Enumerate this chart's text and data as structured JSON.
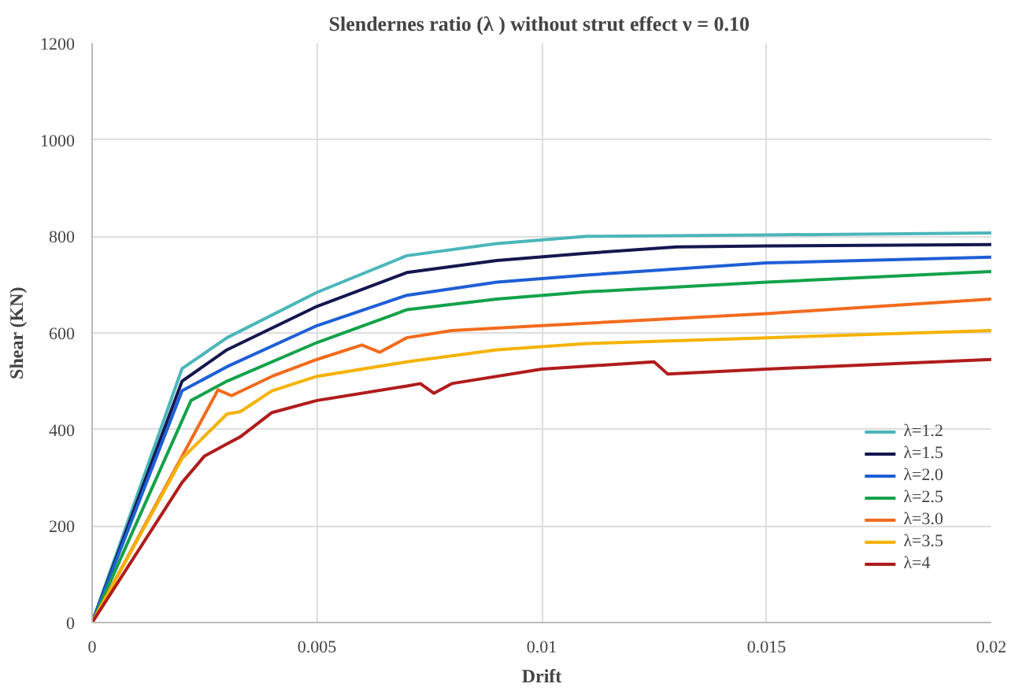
{
  "chart_data": {
    "type": "line",
    "title": "Slendernes ratio (λ ) without strut effect  ν = 0.10",
    "xlabel": "Drift",
    "ylabel": "Shear (KN)",
    "xlim": [
      0,
      0.02
    ],
    "xticks": [
      0,
      0.005,
      0.01,
      0.015,
      0.02
    ],
    "ylim": [
      0,
      1200
    ],
    "yticks": [
      0,
      200,
      400,
      600,
      800,
      1000,
      1200
    ],
    "grid": true,
    "legend": "bottom right",
    "line_style": "solid",
    "marker": "none",
    "series": [
      {
        "name": "λ=1.2",
        "color": "#4bb6bb",
        "x": [
          0,
          0.002,
          0.003,
          0.005,
          0.007,
          0.009,
          0.011,
          0.015,
          0.02
        ],
        "values": [
          0,
          526,
          590,
          684,
          760,
          785,
          800,
          803,
          807
        ]
      },
      {
        "name": "λ=1.5",
        "color": "#14174f",
        "x": [
          0,
          0.002,
          0.003,
          0.005,
          0.007,
          0.009,
          0.011,
          0.013,
          0.015,
          0.02
        ],
        "values": [
          0,
          500,
          565,
          655,
          725,
          750,
          765,
          778,
          780,
          783
        ]
      },
      {
        "name": "λ=2.0",
        "color": "#1f5fd6",
        "x": [
          0,
          0.002,
          0.003,
          0.005,
          0.007,
          0.009,
          0.011,
          0.015,
          0.02
        ],
        "values": [
          0,
          480,
          530,
          615,
          678,
          705,
          720,
          745,
          757
        ]
      },
      {
        "name": "λ=2.5",
        "color": "#13a24a",
        "x": [
          0,
          0.0022,
          0.003,
          0.005,
          0.007,
          0.009,
          0.011,
          0.015,
          0.02
        ],
        "values": [
          0,
          460,
          500,
          580,
          648,
          670,
          685,
          705,
          727
        ]
      },
      {
        "name": "λ=3.0",
        "color": "#f26b1d",
        "x": [
          0,
          0.0028,
          0.0031,
          0.004,
          0.005,
          0.006,
          0.0064,
          0.007,
          0.008,
          0.01,
          0.015,
          0.02
        ],
        "values": [
          0,
          482,
          470,
          510,
          545,
          575,
          560,
          590,
          605,
          615,
          640,
          670
        ]
      },
      {
        "name": "λ=3.5",
        "color": "#f5b200",
        "x": [
          0,
          0.002,
          0.003,
          0.0033,
          0.004,
          0.005,
          0.007,
          0.009,
          0.011,
          0.015,
          0.02
        ],
        "values": [
          0,
          340,
          432,
          437,
          480,
          510,
          540,
          565,
          578,
          590,
          605
        ]
      },
      {
        "name": "λ=4",
        "color": "#b01c1c",
        "x": [
          0,
          0.002,
          0.0025,
          0.003,
          0.0033,
          0.004,
          0.005,
          0.007,
          0.0073,
          0.0076,
          0.008,
          0.01,
          0.0125,
          0.0128,
          0.015,
          0.02
        ],
        "values": [
          0,
          290,
          345,
          370,
          385,
          435,
          460,
          490,
          495,
          475,
          495,
          525,
          540,
          515,
          525,
          545
        ]
      }
    ]
  }
}
